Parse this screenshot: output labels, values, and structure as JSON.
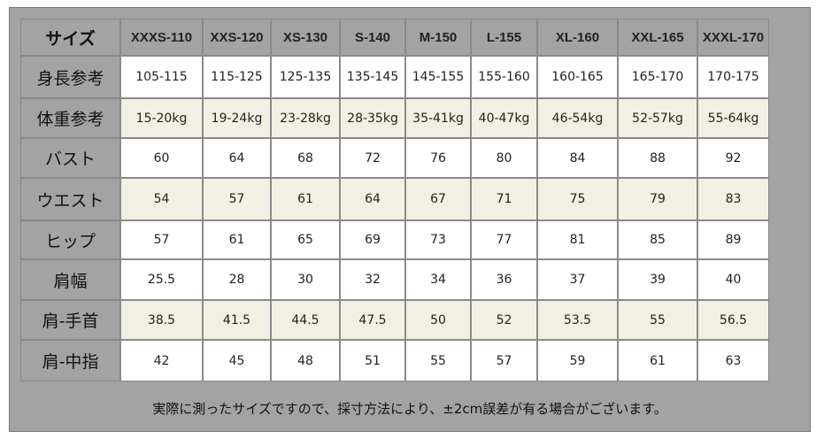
{
  "table": {
    "header": [
      "サイズ",
      "XXXS-110",
      "XXS-120",
      "XS-130",
      "S-140",
      "M-150",
      "L-155",
      "XL-160",
      "XXL-165",
      "XXXL-170"
    ],
    "rows": [
      [
        "身長参考",
        "105-115",
        "115-125",
        "125-135",
        "135-145",
        "145-155",
        "155-160",
        "160-165",
        "165-170",
        "170-175"
      ],
      [
        "体重参考",
        "15-20kg",
        "19-24kg",
        "23-28kg",
        "28-35kg",
        "35-41kg",
        "40-47kg",
        "46-54kg",
        "52-57kg",
        "55-64kg"
      ],
      [
        "バスト",
        "60",
        "64",
        "68",
        "72",
        "76",
        "80",
        "84",
        "88",
        "92"
      ],
      [
        "ウエスト",
        "54",
        "57",
        "61",
        "64",
        "67",
        "71",
        "75",
        "79",
        "83"
      ],
      [
        "ヒップ",
        "57",
        "61",
        "65",
        "69",
        "73",
        "77",
        "81",
        "85",
        "89"
      ],
      [
        "肩幅",
        "25.5",
        "28",
        "30",
        "32",
        "34",
        "36",
        "37",
        "39",
        "40"
      ],
      [
        "肩-手首",
        "38.5",
        "41.5",
        "44.5",
        "47.5",
        "50",
        "52",
        "53.5",
        "55",
        "56.5"
      ],
      [
        "肩-中指",
        "42",
        "45",
        "48",
        "51",
        "55",
        "57",
        "59",
        "61",
        "63"
      ]
    ],
    "note": "実際に測ったサイズですので、採寸方法により、±2cm誤差が有る場合がございます。"
  }
}
